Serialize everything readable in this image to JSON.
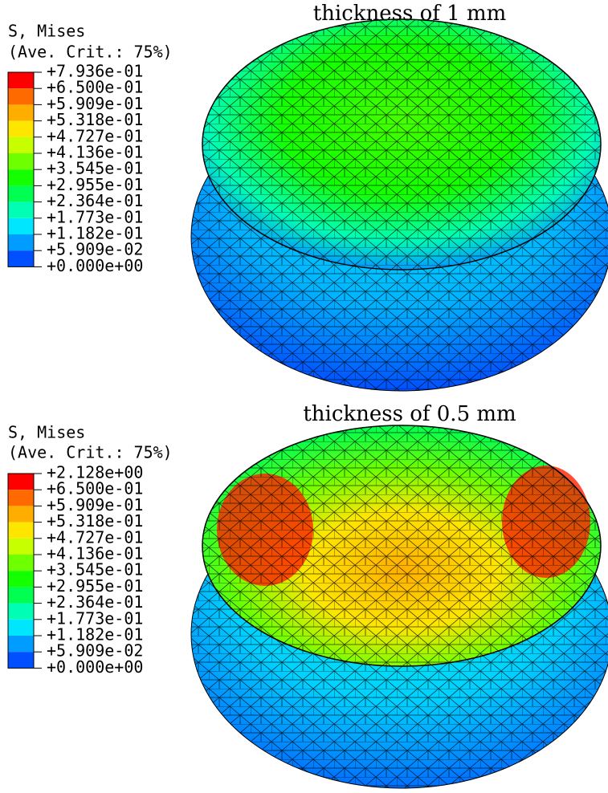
{
  "panels": [
    {
      "title": "thickness of 1 mm",
      "legend_title": "S, Mises",
      "legend_subtitle": "(Ave. Crit.: 75%)",
      "legend_labels": [
        "+7.936e-01",
        "+6.500e-01",
        "+5.909e-01",
        "+5.318e-01",
        "+4.727e-01",
        "+4.136e-01",
        "+3.545e-01",
        "+2.955e-01",
        "+2.364e-01",
        "+1.773e-01",
        "+1.182e-01",
        "+5.909e-02",
        "+0.000e+00"
      ]
    },
    {
      "title": "thickness of 0.5 mm",
      "legend_title": "S, Mises",
      "legend_subtitle": "(Ave. Crit.: 75%)",
      "legend_labels": [
        "+2.128e+00",
        "+6.500e-01",
        "+5.909e-01",
        "+5.318e-01",
        "+4.727e-01",
        "+4.136e-01",
        "+3.545e-01",
        "+2.955e-01",
        "+2.364e-01",
        "+1.773e-01",
        "+1.182e-01",
        "+5.909e-02",
        "+0.000e+00"
      ]
    }
  ],
  "legend_colors": [
    "#ff0000",
    "#ff6a00",
    "#ffae00",
    "#ffe600",
    "#c8ff00",
    "#6eff00",
    "#14ff00",
    "#00ff50",
    "#00ffb4",
    "#00e6ff",
    "#009cff",
    "#0050ff",
    "#0000ff"
  ]
}
